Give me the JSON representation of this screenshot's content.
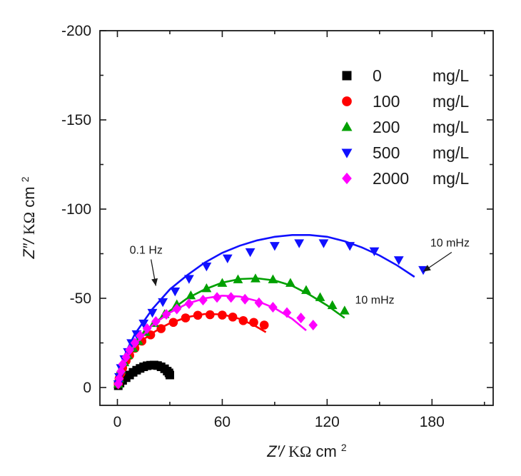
{
  "chart_data": {
    "type": "scatter",
    "title": "",
    "xlabel": {
      "prefix": "Z′/",
      "unit": "KΩ",
      "suffix": " cm",
      "sup": "2"
    },
    "ylabel": {
      "prefix": "Z″/",
      "unit": "KΩ",
      "suffix": " cm",
      "sup": "2"
    },
    "xlim": [
      -10,
      215
    ],
    "ylim": [
      10,
      -200
    ],
    "y_reversed": true,
    "x_ticks": [
      "0",
      "60",
      "120",
      "180"
    ],
    "x_tick_values": [
      0,
      60,
      120,
      180
    ],
    "y_ticks": [
      "0",
      "-50",
      "-100",
      "-150",
      "-200"
    ],
    "y_tick_values": [
      0,
      -50,
      -100,
      -150,
      -200
    ],
    "grid": false,
    "legend_position": "top-right",
    "series": [
      {
        "name": "0",
        "unit": "mg/L",
        "marker": "square",
        "color": "#000000",
        "x": [
          0.5,
          1.5,
          3,
          5,
          7,
          9,
          11,
          13,
          15,
          17,
          19,
          21,
          23,
          25,
          27,
          28.5,
          29.5,
          30
        ],
        "y": [
          -1,
          -2.5,
          -4,
          -5.5,
          -7,
          -8.5,
          -9.7,
          -10.7,
          -11.6,
          -12.2,
          -12.5,
          -12.6,
          -12.3,
          -11.6,
          -10.5,
          -9.2,
          -8.2,
          -7
        ],
        "fit_x": [],
        "fit_y": []
      },
      {
        "name": "100",
        "unit": "mg/L",
        "marker": "circle",
        "color": "#ff0000",
        "x": [
          0.5,
          1,
          2,
          3,
          5,
          7,
          10,
          14,
          19,
          25,
          32,
          39,
          46,
          53,
          60,
          66,
          72,
          78,
          84
        ],
        "y": [
          -2,
          -5,
          -8,
          -11,
          -15,
          -18,
          -22,
          -26,
          -29.5,
          -33,
          -36.5,
          -39,
          -40.5,
          -40.8,
          -40.6,
          -39.5,
          -37.5,
          -36.5,
          -35
        ],
        "fit_x": [
          0,
          2,
          5,
          10,
          15,
          20,
          25,
          30,
          40,
          50,
          60,
          70,
          78,
          85
        ],
        "fit_y": [
          0,
          -9,
          -15,
          -22,
          -27,
          -30.5,
          -33.5,
          -36,
          -39.5,
          -41.2,
          -41,
          -38.5,
          -35,
          -31
        ]
      },
      {
        "name": "200",
        "unit": "mg/L",
        "marker": "triangle-up",
        "color": "#00a000",
        "x": [
          0.5,
          1,
          2,
          4,
          6,
          9,
          12,
          16,
          21,
          27,
          34,
          42,
          51,
          60,
          69,
          79,
          89,
          99,
          108,
          116,
          123,
          130
        ],
        "y": [
          -2,
          -5,
          -10,
          -14,
          -18,
          -22,
          -26,
          -31,
          -36,
          -41,
          -46.5,
          -51.5,
          -55.5,
          -58.5,
          -60.5,
          -61,
          -60.5,
          -58.5,
          -54.5,
          -50.5,
          -46,
          -43
        ],
        "fit_x": [
          0,
          2,
          5,
          10,
          20,
          30,
          40,
          50,
          60,
          70,
          80,
          90,
          100,
          110,
          120,
          130
        ],
        "fit_y": [
          0,
          -10,
          -17,
          -24,
          -35,
          -43,
          -50,
          -55,
          -58.8,
          -60.8,
          -61.2,
          -60,
          -57,
          -52,
          -46,
          -39
        ]
      },
      {
        "name": "500",
        "unit": "mg/L",
        "marker": "triangle-down",
        "color": "#1010ff",
        "x": [
          0.5,
          1,
          2,
          4,
          6,
          8,
          11,
          15,
          20,
          26,
          33,
          41,
          51,
          63,
          76,
          90,
          104,
          118,
          133,
          147,
          161,
          175
        ],
        "y": [
          -2,
          -6,
          -11,
          -16,
          -20,
          -25,
          -30,
          -36,
          -42,
          -48,
          -54,
          -61,
          -68,
          -72.5,
          -76,
          -79.5,
          -81,
          -81,
          -79.5,
          -76.5,
          -71.5,
          -66
        ],
        "fit_x": [
          0,
          2,
          5,
          10,
          20,
          30,
          40,
          50,
          60,
          70,
          80,
          90,
          100,
          110,
          120,
          130,
          140,
          150,
          160,
          170
        ],
        "fit_y": [
          0,
          -12,
          -20,
          -30,
          -44,
          -55,
          -63,
          -70,
          -75.5,
          -79.5,
          -82.5,
          -84.5,
          -85.5,
          -85.5,
          -84.5,
          -82,
          -78.5,
          -74,
          -68.5,
          -62
        ]
      },
      {
        "name": "2000",
        "unit": "mg/L",
        "marker": "diamond",
        "color": "#ff00ff",
        "x": [
          0.5,
          1,
          2,
          3,
          5,
          7,
          10,
          13,
          17,
          22,
          28,
          34,
          41,
          49,
          57,
          65,
          73,
          81,
          89,
          97,
          105,
          112
        ],
        "y": [
          -2,
          -5,
          -9,
          -13,
          -17,
          -21,
          -25,
          -29,
          -33,
          -37,
          -41,
          -44,
          -47,
          -49,
          -50.5,
          -50.5,
          -49.5,
          -47.5,
          -45,
          -42,
          -39,
          -35
        ],
        "fit_x": [
          0,
          2,
          5,
          10,
          20,
          30,
          40,
          50,
          60,
          70,
          80,
          90,
          100,
          108
        ],
        "fit_y": [
          0,
          -9,
          -16,
          -24,
          -35,
          -42,
          -47,
          -50,
          -51.5,
          -51,
          -48.5,
          -44.5,
          -38.5,
          -32
        ]
      }
    ],
    "annotations": [
      {
        "text": "0.1 Hz",
        "x": 7,
        "y": -75,
        "arrow_to": [
          22,
          -57
        ]
      },
      {
        "text": "10 mHz",
        "x": 136,
        "y": -47,
        "arrow_to": null
      },
      {
        "text": "10 mHz",
        "x": 179,
        "y": -79,
        "arrow_to": [
          175,
          -65
        ]
      }
    ]
  }
}
